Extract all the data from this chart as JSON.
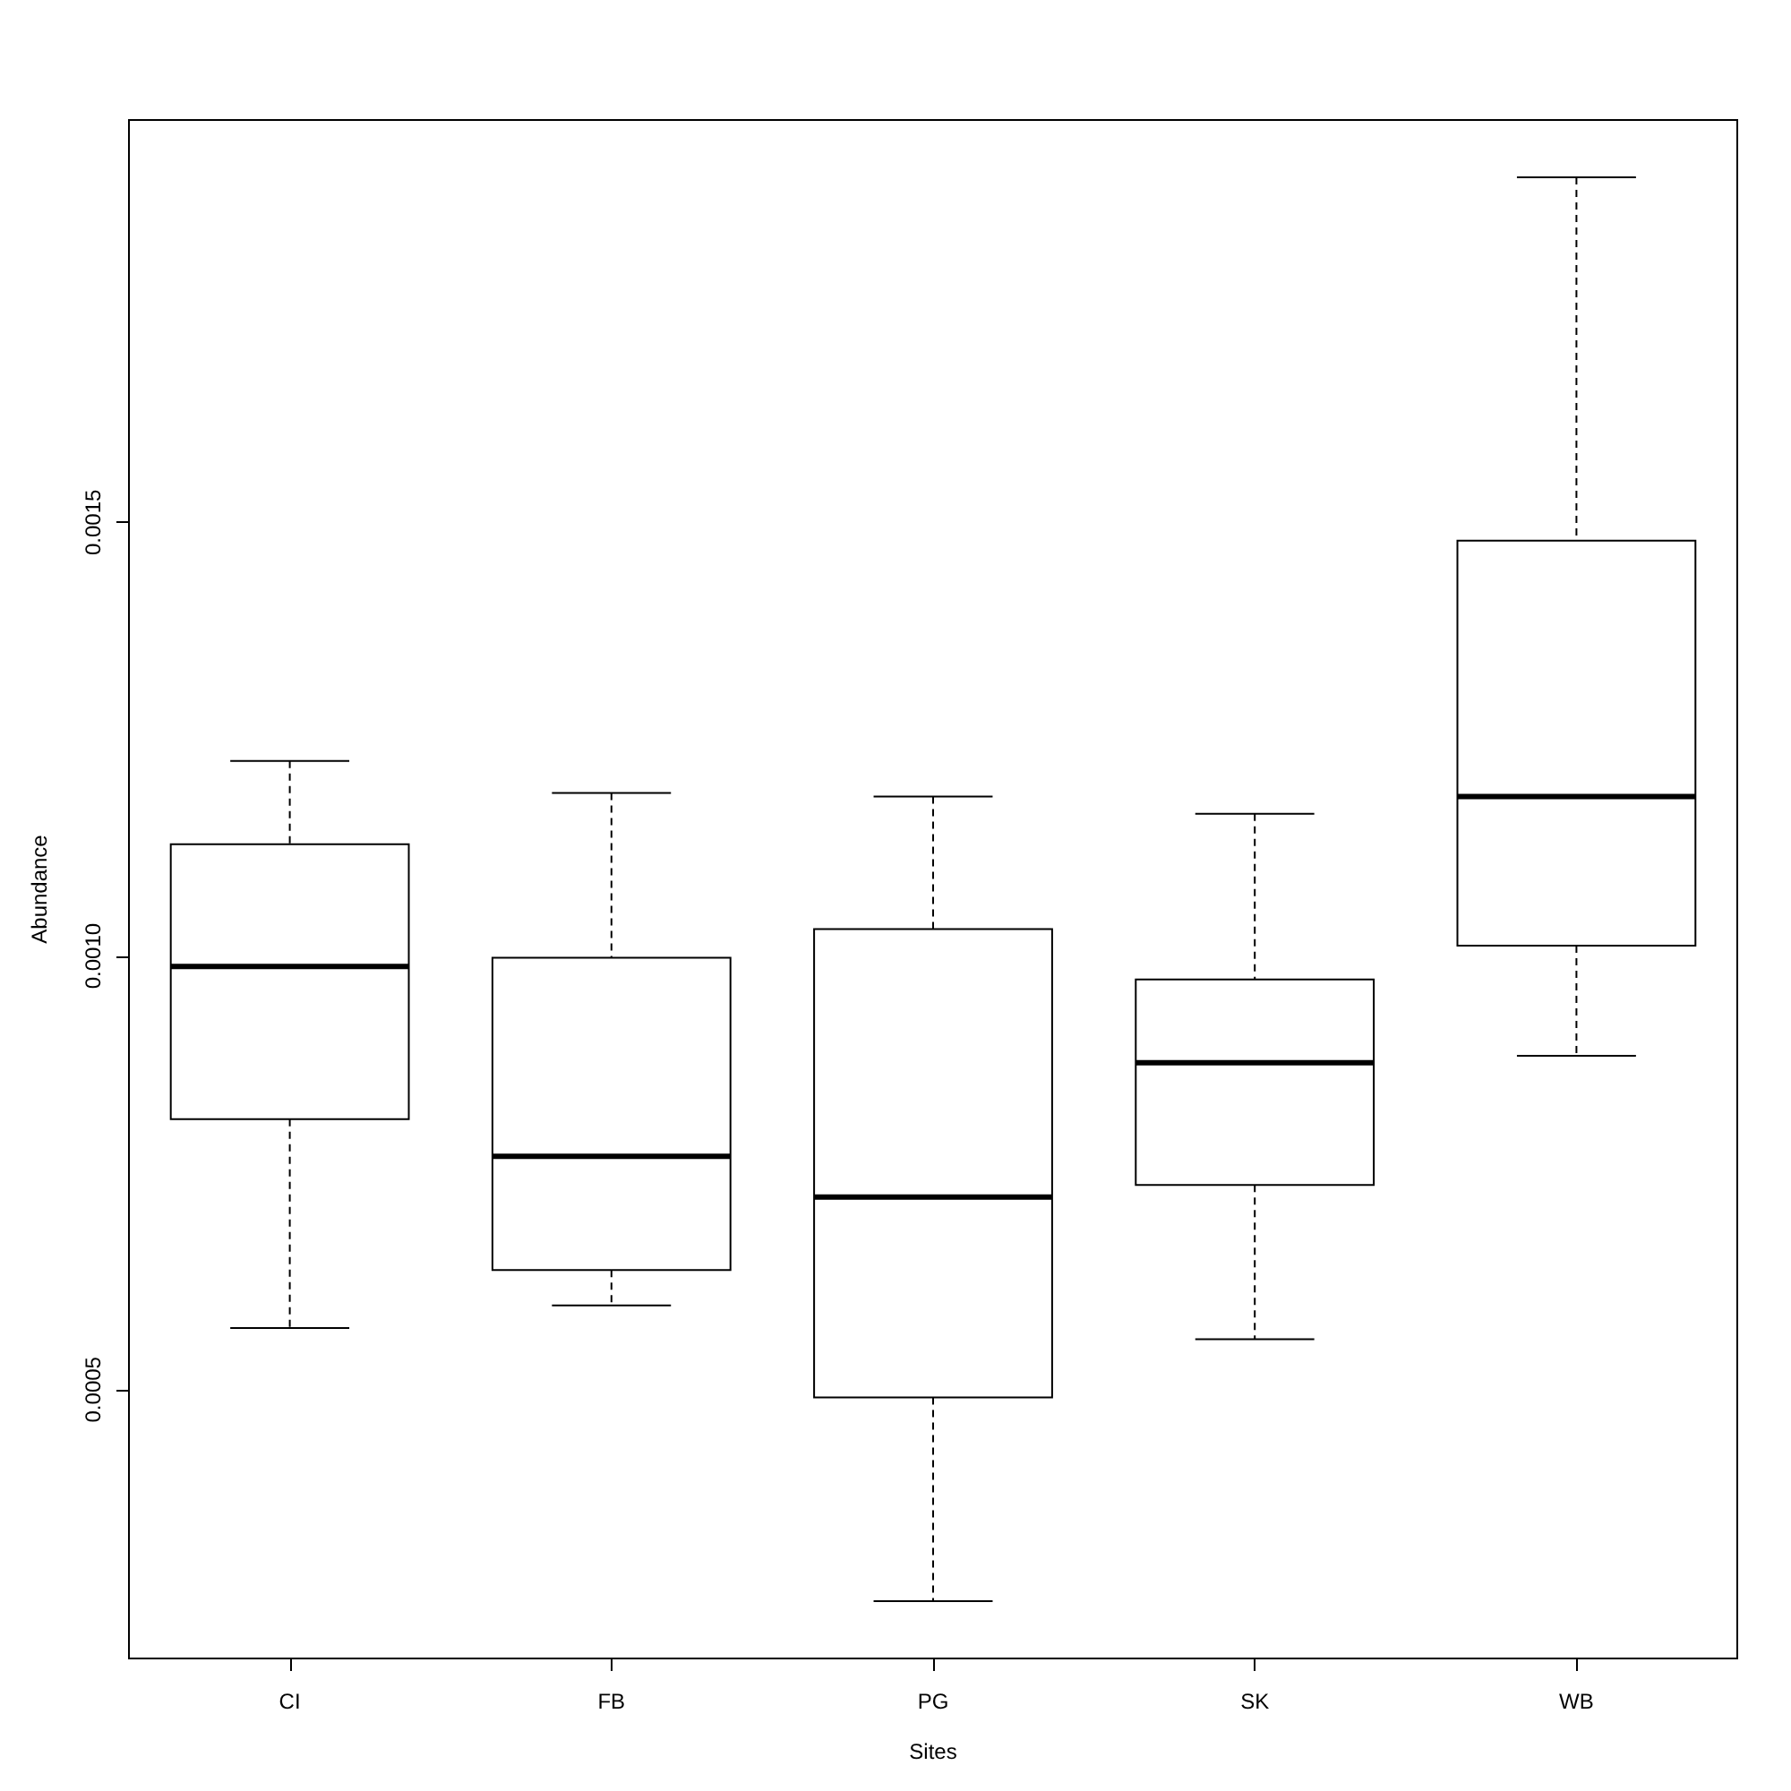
{
  "chart_data": {
    "type": "box",
    "xlabel": "Sites",
    "ylabel": "Abundance",
    "categories": [
      "CI",
      "FB",
      "PG",
      "SK",
      "WB"
    ],
    "boxes": [
      {
        "low": 0.000571,
        "q1": 0.000812,
        "median": 0.000988,
        "q3": 0.001129,
        "high": 0.001225
      },
      {
        "low": 0.000597,
        "q1": 0.000638,
        "median": 0.000769,
        "q3": 0.000998,
        "high": 0.001188
      },
      {
        "low": 0.000256,
        "q1": 0.000491,
        "median": 0.000722,
        "q3": 0.001031,
        "high": 0.001184
      },
      {
        "low": 0.000558,
        "q1": 0.000736,
        "median": 0.000877,
        "q3": 0.000973,
        "high": 0.001164
      },
      {
        "low": 0.000885,
        "q1": 0.001012,
        "median": 0.001184,
        "q3": 0.001479,
        "high": 0.001898
      }
    ],
    "color": "#000000",
    "ylim": [
      0.00019,
      0.001964
    ],
    "yticks": [
      {
        "value": 0.0005,
        "label": "0.0005"
      },
      {
        "value": 0.001,
        "label": "0.0010"
      },
      {
        "value": 0.0015,
        "label": "0.0015"
      }
    ],
    "grid": false
  }
}
